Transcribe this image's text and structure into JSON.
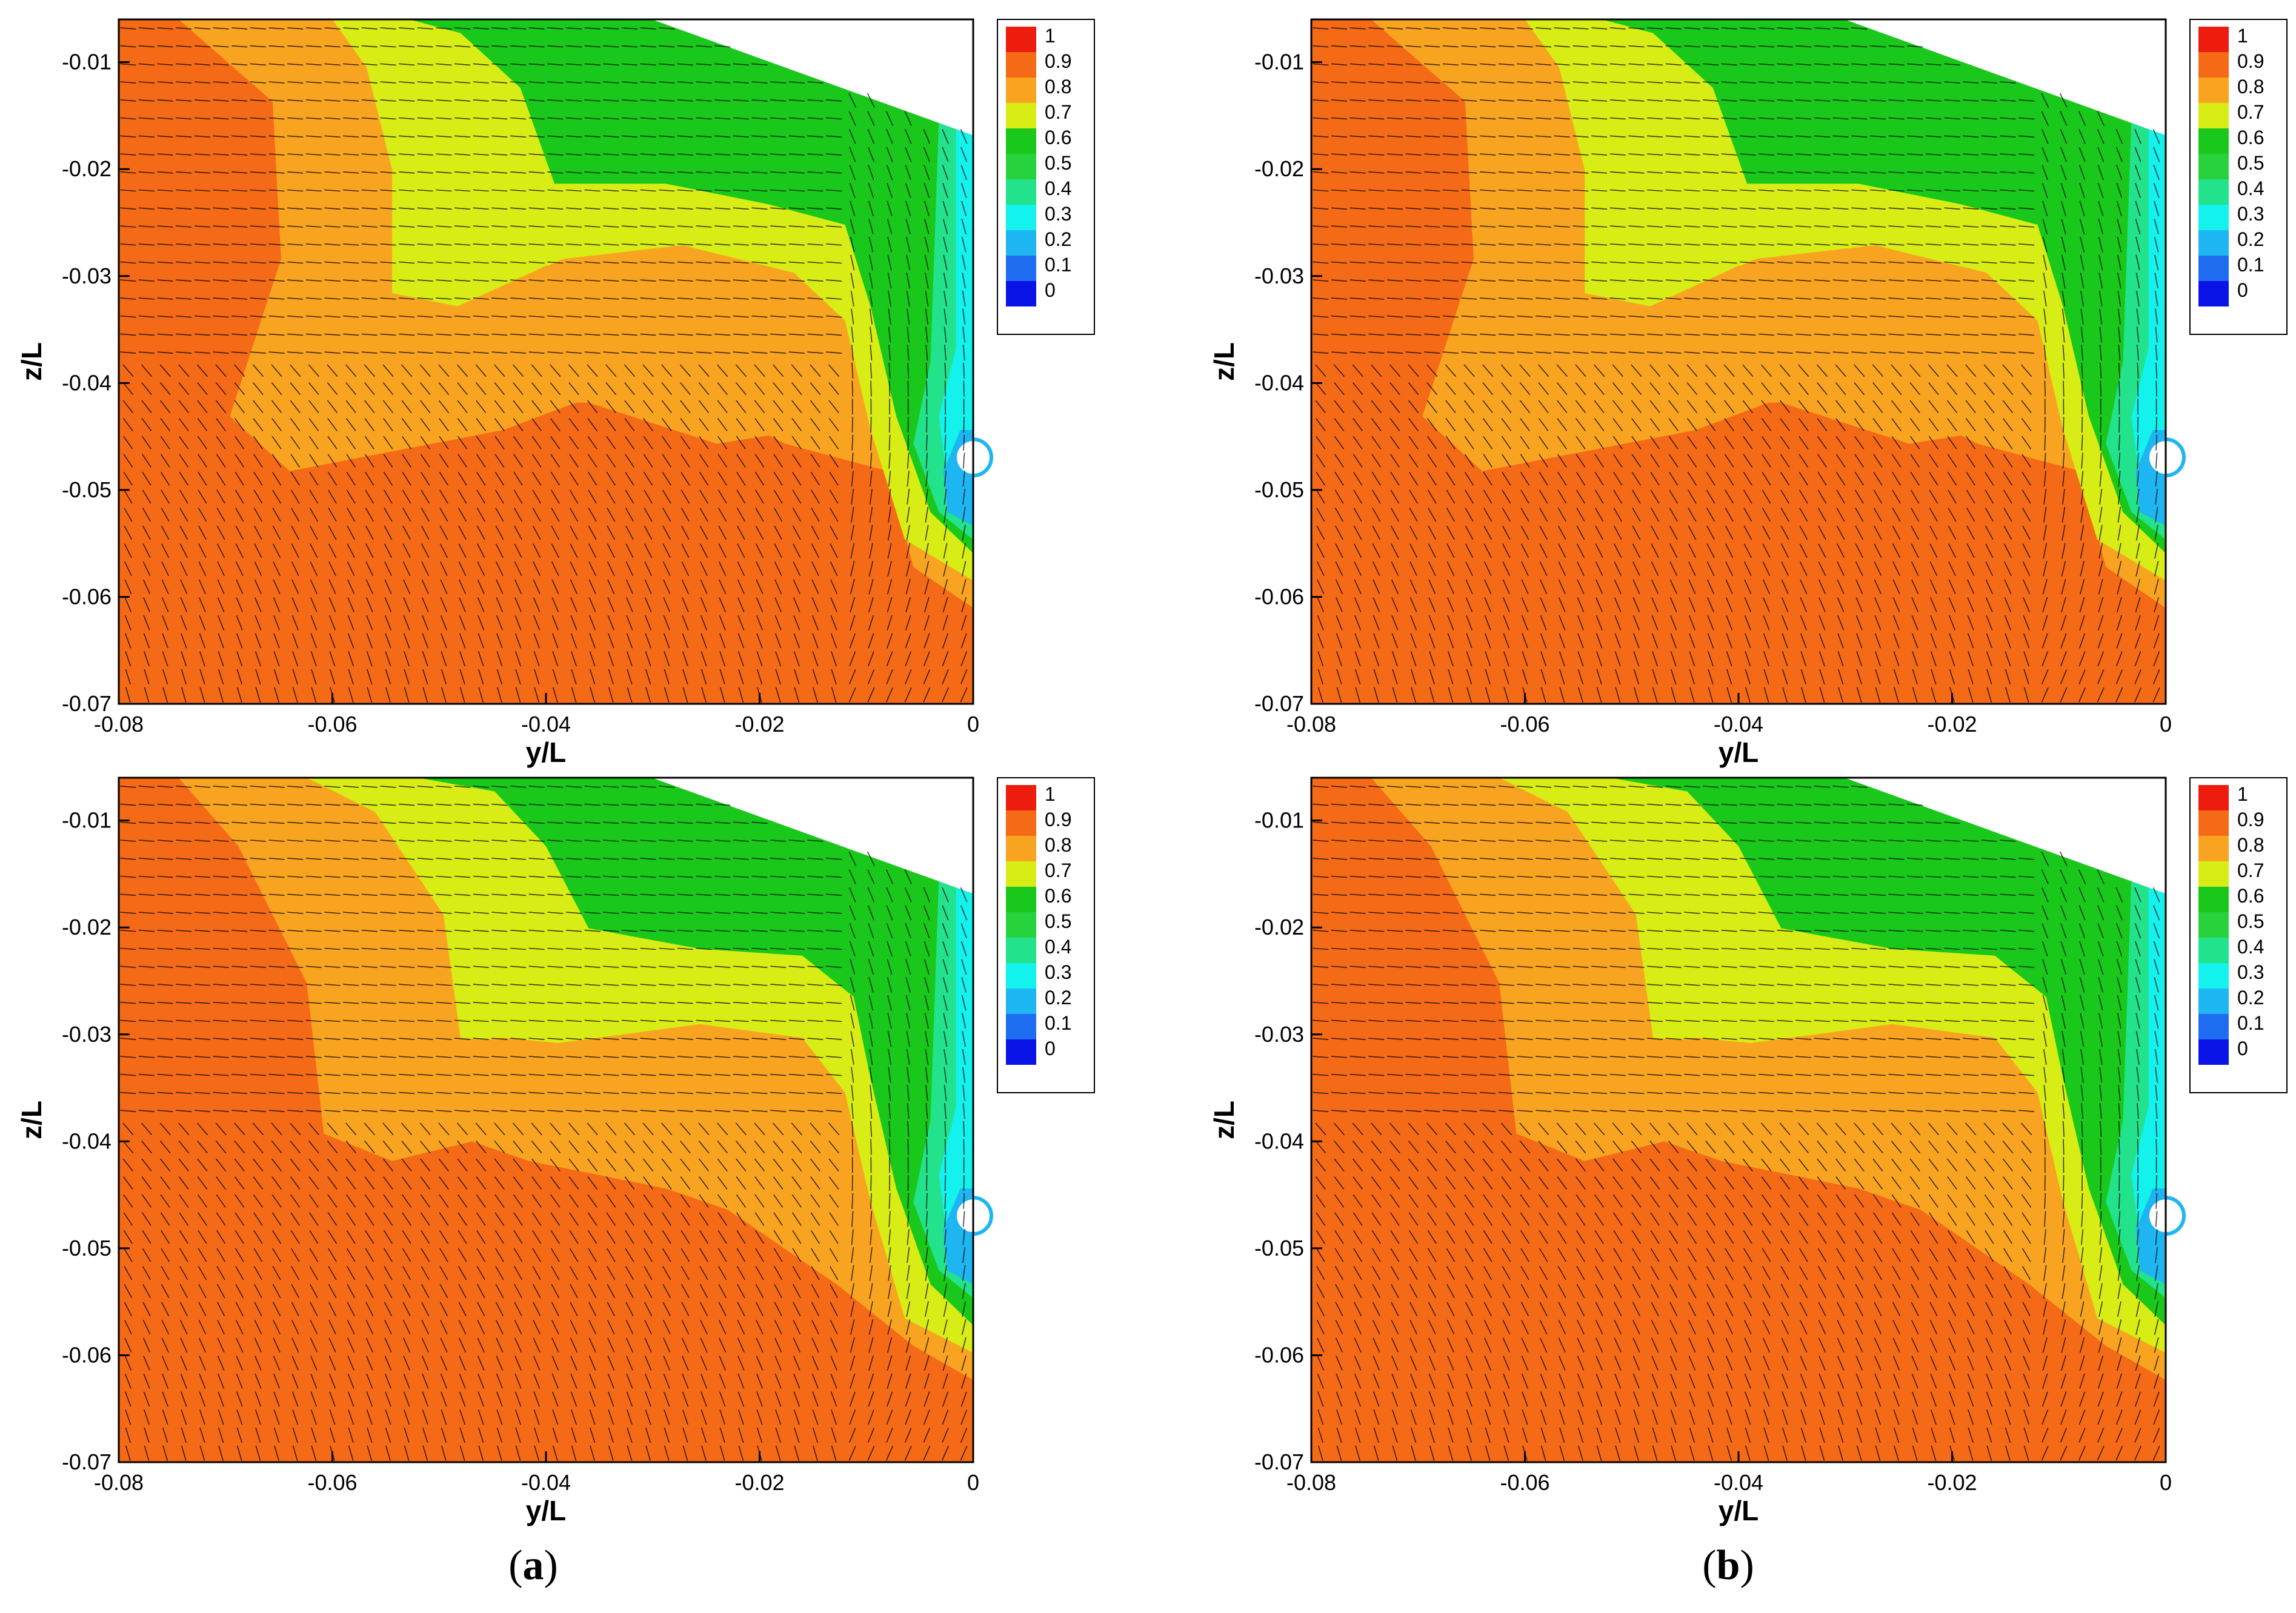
{
  "captions": {
    "a": "a",
    "b": "b"
  },
  "chart_data": [
    {
      "type": "heatmap",
      "panel": "top-left",
      "xlabel": "y/L",
      "ylabel": "z/L",
      "xlim": [
        -0.08,
        0
      ],
      "ylim": [
        -0.07,
        -0.006
      ],
      "xticks": [
        "-0.08",
        "-0.06",
        "-0.04",
        "-0.02",
        "0"
      ],
      "yticks": [
        "-0.01",
        "-0.02",
        "-0.03",
        "-0.04",
        "-0.05",
        "-0.06",
        "-0.07"
      ],
      "legend_levels": [
        "1",
        "0.9",
        "0.8",
        "0.7",
        "0.6",
        "0.5",
        "0.4",
        "0.3",
        "0.2",
        "0.1",
        "0"
      ],
      "legend_position": "right",
      "grid": false,
      "overlay": "velocity vectors"
    },
    {
      "type": "heatmap",
      "panel": "top-right",
      "xlabel": "y/L",
      "ylabel": "z/L",
      "xlim": [
        -0.08,
        0
      ],
      "ylim": [
        -0.07,
        -0.006
      ],
      "xticks": [
        "-0.08",
        "-0.06",
        "-0.04",
        "-0.02",
        "0"
      ],
      "yticks": [
        "-0.01",
        "-0.02",
        "-0.03",
        "-0.04",
        "-0.05",
        "-0.06",
        "-0.07"
      ],
      "legend_levels": [
        "1",
        "0.9",
        "0.8",
        "0.7",
        "0.6",
        "0.5",
        "0.4",
        "0.3",
        "0.2",
        "0.1",
        "0"
      ],
      "legend_position": "right",
      "grid": false,
      "overlay": "velocity vectors"
    },
    {
      "type": "heatmap",
      "panel": "bottom-left",
      "xlabel": "y/L",
      "ylabel": "z/L",
      "xlim": [
        -0.08,
        0
      ],
      "ylim": [
        -0.07,
        -0.006
      ],
      "xticks": [
        "-0.08",
        "-0.06",
        "-0.04",
        "-0.02",
        "0"
      ],
      "yticks": [
        "-0.01",
        "-0.02",
        "-0.03",
        "-0.04",
        "-0.05",
        "-0.06",
        "-0.07"
      ],
      "legend_levels": [
        "1",
        "0.9",
        "0.8",
        "0.7",
        "0.6",
        "0.5",
        "0.4",
        "0.3",
        "0.2",
        "0.1",
        "0"
      ],
      "legend_position": "right",
      "grid": false,
      "overlay": "velocity vectors"
    },
    {
      "type": "heatmap",
      "panel": "bottom-right",
      "xlabel": "y/L",
      "ylabel": "z/L",
      "xlim": [
        -0.08,
        0
      ],
      "ylim": [
        -0.07,
        -0.006
      ],
      "xticks": [
        "-0.08",
        "-0.06",
        "-0.04",
        "-0.02",
        "0"
      ],
      "yticks": [
        "-0.01",
        "-0.02",
        "-0.03",
        "-0.04",
        "-0.05",
        "-0.06",
        "-0.07"
      ],
      "legend_levels": [
        "1",
        "0.9",
        "0.8",
        "0.7",
        "0.6",
        "0.5",
        "0.4",
        "0.3",
        "0.2",
        "0.1",
        "0"
      ],
      "legend_position": "right",
      "grid": false,
      "overlay": "velocity vectors"
    }
  ],
  "colors": {
    "c1": "#ee1c0e",
    "c09": "#f56a16",
    "c08": "#f9a420",
    "c07": "#d8ec16",
    "c06": "#19c81a",
    "c05": "#28d23c",
    "c04": "#22e28c",
    "c03": "#14f2ee",
    "c02": "#1eb6f2",
    "c01": "#1e6cf0",
    "c0": "#0a14e8"
  }
}
